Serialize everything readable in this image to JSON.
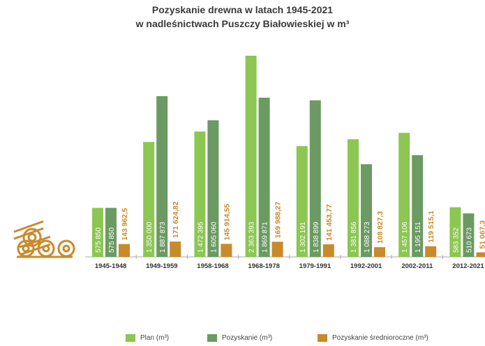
{
  "chart_data": {
    "type": "bar",
    "title": "Pozyskanie drewna w latach 1945-2021",
    "subtitle": "w nadleśnictwach Puszczy Białowieskiej w m³",
    "categories": [
      "1945-1948",
      "1949-1959",
      "1958-1968",
      "1968-1978",
      "1979-1991",
      "1992-2001",
      "2002-2011",
      "2012-2021"
    ],
    "series": [
      {
        "name": "Plan (m³)",
        "color": "#8cc653",
        "values": [
          575850,
          1350000,
          1472395,
          2363393,
          1302191,
          1381856,
          1457106,
          583352
        ],
        "labels": [
          "575 850",
          "1 350 000",
          "1 472 395",
          "2 363 393",
          "1 302 191",
          "1 381 856",
          "1 457 106",
          "583 352"
        ]
      },
      {
        "name": "Pozyskanie (m³)",
        "color": "#6b9a62",
        "values": [
          575850,
          1887873,
          1605060,
          1869871,
          1838899,
          1088273,
          1195151,
          510673
        ],
        "labels": [
          "575 850",
          "1 887 873",
          "1 605 060",
          "1 869 871",
          "1 838 899",
          "1 088 273",
          "1 195 151",
          "510 673"
        ]
      },
      {
        "name": "Pozyskanie średnioroczne (m³)",
        "color": "#c98a2b",
        "values": [
          143962.5,
          171624.82,
          145914.55,
          169988.27,
          141453.77,
          108827.3,
          119515.1,
          51067.3
        ],
        "labels": [
          "143 962,5",
          "171 624,82",
          "145 914,55",
          "169 988,27",
          "141 453,77",
          "108 827,3",
          "119 515,1",
          "51 067,3"
        ]
      }
    ],
    "legend_position": "bottom",
    "grid": false,
    "icon": "log-pile-icon"
  }
}
